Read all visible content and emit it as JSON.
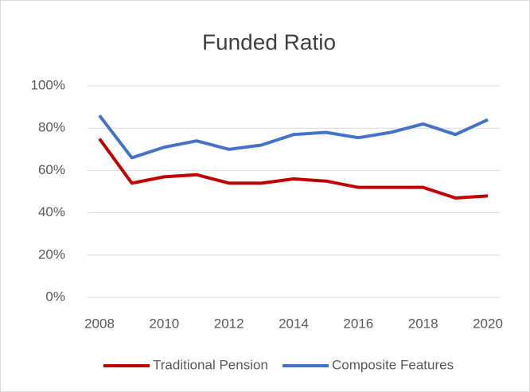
{
  "chart_data": {
    "type": "line",
    "title": "Funded Ratio",
    "x": [
      2008,
      2009,
      2010,
      2011,
      2012,
      2013,
      2014,
      2015,
      2016,
      2017,
      2018,
      2019,
      2020
    ],
    "series": [
      {
        "name": "Traditional Pension",
        "color": "#c00000",
        "values": [
          75,
          54,
          57,
          58,
          54,
          54,
          56,
          55,
          52,
          52,
          52,
          47,
          48
        ]
      },
      {
        "name": "Composite Features",
        "color": "#4472c4",
        "values": [
          86,
          66,
          71,
          74,
          70,
          72,
          77,
          78,
          75.5,
          78,
          82,
          77,
          84
        ]
      }
    ],
    "xlim": [
      2008,
      2020
    ],
    "xticks": [
      2008,
      2010,
      2012,
      2014,
      2016,
      2018,
      2020
    ],
    "ylim": [
      0,
      100
    ],
    "yticks": [
      {
        "value": 0,
        "label": "0%"
      },
      {
        "value": 20,
        "label": "20%"
      },
      {
        "value": 40,
        "label": "40%"
      },
      {
        "value": 60,
        "label": "60%"
      },
      {
        "value": 80,
        "label": "80%"
      },
      {
        "value": 100,
        "label": "100%"
      }
    ],
    "grid": true,
    "legend": "bottom"
  }
}
